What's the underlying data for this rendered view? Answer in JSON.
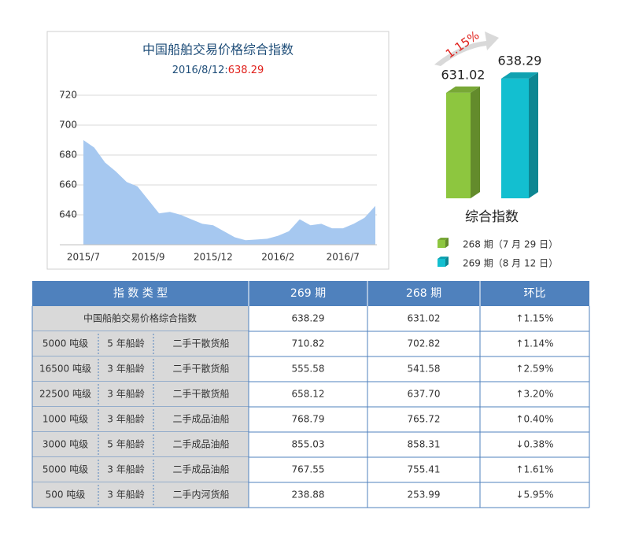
{
  "chart_data": [
    {
      "type": "area",
      "title": "中国船舶交易价格综合指数",
      "subtitle": "2016/8/12:",
      "subtitle_value": "638.29",
      "categories": [
        "2015/7",
        null,
        null,
        null,
        null,
        null,
        "2015/9",
        null,
        null,
        null,
        null,
        null,
        "2015/12",
        null,
        null,
        null,
        null,
        null,
        "2016/2",
        null,
        null,
        null,
        null,
        null,
        "2016/7",
        null,
        null,
        null
      ],
      "values": [
        690,
        685,
        675,
        669,
        662,
        659,
        650,
        641,
        642,
        640,
        637,
        634,
        633,
        629,
        625,
        623,
        623.5,
        624,
        626,
        629,
        637,
        633,
        634,
        631,
        631,
        634,
        638,
        646
      ],
      "color": "#a6c8f0",
      "ylim": [
        620,
        720
      ],
      "yticks": [
        640,
        660,
        680,
        700,
        720
      ],
      "grid": true
    },
    {
      "type": "bar3d",
      "title": "综合指数",
      "annotation": "1.15%",
      "categories": [
        "268 期（7 月 29 日）",
        "269 期（8 月 12 日）"
      ],
      "values": [
        631.02,
        638.29
      ],
      "colors": [
        "#8dc63f",
        "#13bfd0"
      ],
      "ylim": [
        577,
        660
      ],
      "legend": true
    }
  ],
  "table": {
    "header": [
      "指 数 类 型",
      "269 期",
      "268 期",
      "环比"
    ],
    "rows": [
      {
        "type": [
          "中国船舶交易价格综合指数"
        ],
        "current": "638.29",
        "previous": "631.02",
        "change": "↑1.15%",
        "dir": "up"
      },
      {
        "type": [
          "5000 吨级",
          "5 年船龄",
          "二手干散货船"
        ],
        "current": "710.82",
        "previous": "702.82",
        "change": "↑1.14%",
        "dir": "up"
      },
      {
        "type": [
          "16500 吨级",
          "3 年船龄",
          "二手干散货船"
        ],
        "current": "555.58",
        "previous": "541.58",
        "change": "↑2.59%",
        "dir": "up"
      },
      {
        "type": [
          "22500 吨级",
          "3 年船龄",
          "二手干散货船"
        ],
        "current": "658.12",
        "previous": "637.70",
        "change": "↑3.20%",
        "dir": "up"
      },
      {
        "type": [
          "1000 吨级",
          "3 年船龄",
          "二手成品油船"
        ],
        "current": "768.79",
        "previous": "765.72",
        "change": "↑0.40%",
        "dir": "up"
      },
      {
        "type": [
          "3000 吨级",
          "5 年船龄",
          "二手成品油船"
        ],
        "current": "855.03",
        "previous": "858.31",
        "change": "↓0.38%",
        "dir": "down"
      },
      {
        "type": [
          "5000 吨级",
          "3 年船龄",
          "二手成品油船"
        ],
        "current": "767.55",
        "previous": "755.41",
        "change": "↑1.61%",
        "dir": "up"
      },
      {
        "type": [
          "500 吨级",
          "3 年船龄",
          "二手内河货船"
        ],
        "current": "238.88",
        "previous": "253.99",
        "change": "↓5.95%",
        "dir": "down"
      }
    ]
  }
}
